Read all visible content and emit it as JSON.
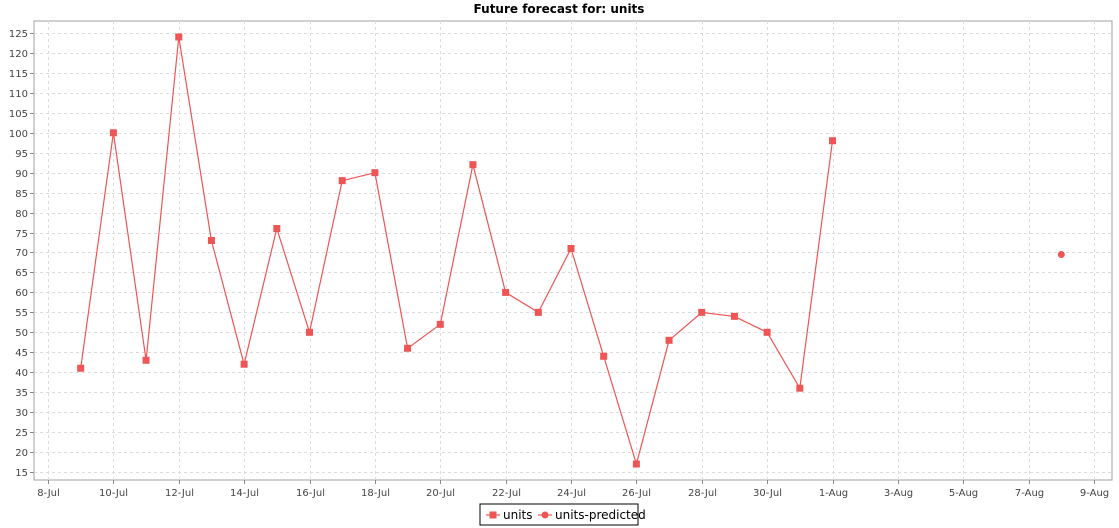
{
  "chart_data": {
    "type": "line",
    "title": "Future forecast for: units",
    "xlabel": "",
    "ylabel": "",
    "ylim": [
      13,
      128
    ],
    "xlim": [
      "2023-07-07",
      "2023-08-09"
    ],
    "y_ticks": [
      15,
      20,
      25,
      30,
      35,
      40,
      45,
      50,
      55,
      60,
      65,
      70,
      75,
      80,
      85,
      90,
      95,
      100,
      105,
      110,
      115,
      120,
      125
    ],
    "x_ticks": [
      {
        "date": "2023-07-08",
        "label": "8-Jul"
      },
      {
        "date": "2023-07-10",
        "label": "10-Jul"
      },
      {
        "date": "2023-07-12",
        "label": "12-Jul"
      },
      {
        "date": "2023-07-14",
        "label": "14-Jul"
      },
      {
        "date": "2023-07-16",
        "label": "16-Jul"
      },
      {
        "date": "2023-07-18",
        "label": "18-Jul"
      },
      {
        "date": "2023-07-20",
        "label": "20-Jul"
      },
      {
        "date": "2023-07-22",
        "label": "22-Jul"
      },
      {
        "date": "2023-07-24",
        "label": "24-Jul"
      },
      {
        "date": "2023-07-26",
        "label": "26-Jul"
      },
      {
        "date": "2023-07-28",
        "label": "28-Jul"
      },
      {
        "date": "2023-07-30",
        "label": "30-Jul"
      },
      {
        "date": "2023-08-01",
        "label": "1-Aug"
      },
      {
        "date": "2023-08-03",
        "label": "3-Aug"
      },
      {
        "date": "2023-08-05",
        "label": "5-Aug"
      },
      {
        "date": "2023-08-07",
        "label": "7-Aug"
      },
      {
        "date": "2023-08-09",
        "label": "9-Aug"
      }
    ],
    "grid": true,
    "legend_position": "bottom-center",
    "series": [
      {
        "name": "units",
        "color": "#ee5555",
        "marker": "square",
        "line": true,
        "points": [
          {
            "x": "2023-07-09",
            "y": 41
          },
          {
            "x": "2023-07-10",
            "y": 100
          },
          {
            "x": "2023-07-11",
            "y": 43
          },
          {
            "x": "2023-07-12",
            "y": 124
          },
          {
            "x": "2023-07-13",
            "y": 73
          },
          {
            "x": "2023-07-14",
            "y": 42
          },
          {
            "x": "2023-07-15",
            "y": 76
          },
          {
            "x": "2023-07-16",
            "y": 50
          },
          {
            "x": "2023-07-17",
            "y": 88
          },
          {
            "x": "2023-07-18",
            "y": 90
          },
          {
            "x": "2023-07-19",
            "y": 46
          },
          {
            "x": "2023-07-20",
            "y": 52
          },
          {
            "x": "2023-07-21",
            "y": 92
          },
          {
            "x": "2023-07-22",
            "y": 60
          },
          {
            "x": "2023-07-23",
            "y": 55
          },
          {
            "x": "2023-07-24",
            "y": 71
          },
          {
            "x": "2023-07-25",
            "y": 44
          },
          {
            "x": "2023-07-26",
            "y": 17
          },
          {
            "x": "2023-07-27",
            "y": 48
          },
          {
            "x": "2023-07-28",
            "y": 55
          },
          {
            "x": "2023-07-29",
            "y": 54
          },
          {
            "x": "2023-07-30",
            "y": 50
          },
          {
            "x": "2023-07-31",
            "y": 36
          },
          {
            "x": "2023-08-01",
            "y": 98
          }
        ]
      },
      {
        "name": "units-predicted",
        "color": "#ee5555",
        "marker": "circle",
        "line": true,
        "points": [
          {
            "x": "2023-08-08",
            "y": 69.5
          }
        ]
      }
    ]
  }
}
